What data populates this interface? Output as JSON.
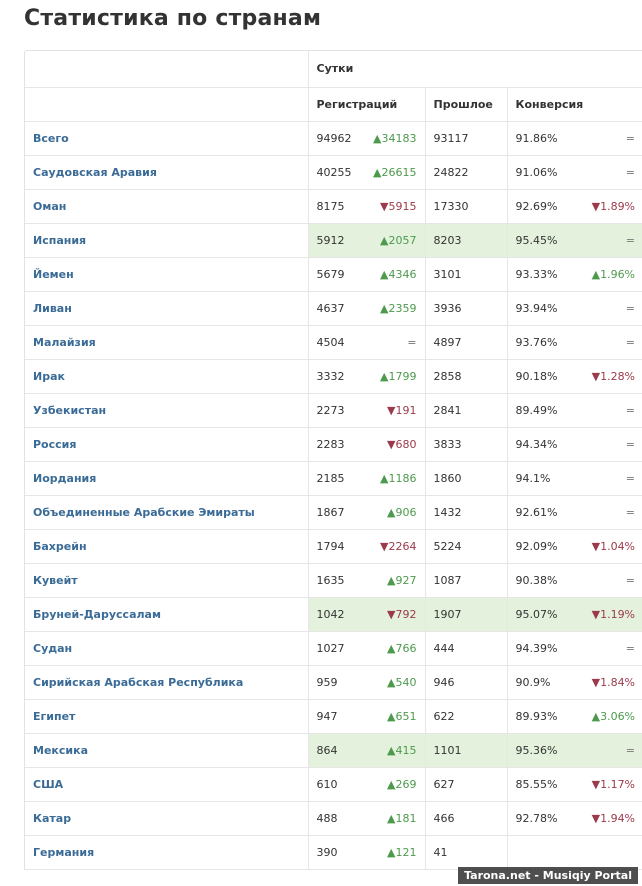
{
  "title": "Статистика по странам",
  "header": {
    "group": "Сутки",
    "col_reg": "Регистраций",
    "col_prev": "Прошлое",
    "col_conv": "Конверсия"
  },
  "rows": [
    {
      "country": "Всего",
      "reg": "94962",
      "reg_delta": "▲34183",
      "reg_dir": "up",
      "prev": "93117",
      "conv": "91.86%",
      "conv_delta": "=",
      "conv_dir": "eq",
      "hl": false
    },
    {
      "country": "Саудовская Аравия",
      "reg": "40255",
      "reg_delta": "▲26615",
      "reg_dir": "up",
      "prev": "24822",
      "conv": "91.06%",
      "conv_delta": "=",
      "conv_dir": "eq",
      "hl": false
    },
    {
      "country": "Оман",
      "reg": "8175",
      "reg_delta": "▼5915",
      "reg_dir": "down",
      "prev": "17330",
      "conv": "92.69%",
      "conv_delta": "▼1.89%",
      "conv_dir": "down",
      "hl": false
    },
    {
      "country": "Испания",
      "reg": "5912",
      "reg_delta": "▲2057",
      "reg_dir": "up",
      "prev": "8203",
      "conv": "95.45%",
      "conv_delta": "=",
      "conv_dir": "eq",
      "hl": true
    },
    {
      "country": "Йемен",
      "reg": "5679",
      "reg_delta": "▲4346",
      "reg_dir": "up",
      "prev": "3101",
      "conv": "93.33%",
      "conv_delta": "▲1.96%",
      "conv_dir": "up",
      "hl": false
    },
    {
      "country": "Ливан",
      "reg": "4637",
      "reg_delta": "▲2359",
      "reg_dir": "up",
      "prev": "3936",
      "conv": "93.94%",
      "conv_delta": "=",
      "conv_dir": "eq",
      "hl": false
    },
    {
      "country": "Малайзия",
      "reg": "4504",
      "reg_delta": "=",
      "reg_dir": "eq",
      "prev": "4897",
      "conv": "93.76%",
      "conv_delta": "=",
      "conv_dir": "eq",
      "hl": false
    },
    {
      "country": "Ирак",
      "reg": "3332",
      "reg_delta": "▲1799",
      "reg_dir": "up",
      "prev": "2858",
      "conv": "90.18%",
      "conv_delta": "▼1.28%",
      "conv_dir": "down",
      "hl": false
    },
    {
      "country": "Узбекистан",
      "reg": "2273",
      "reg_delta": "▼191",
      "reg_dir": "down",
      "prev": "2841",
      "conv": "89.49%",
      "conv_delta": "=",
      "conv_dir": "eq",
      "hl": false
    },
    {
      "country": "Россия",
      "reg": "2283",
      "reg_delta": "▼680",
      "reg_dir": "down",
      "prev": "3833",
      "conv": "94.34%",
      "conv_delta": "=",
      "conv_dir": "eq",
      "hl": false
    },
    {
      "country": "Иордания",
      "reg": "2185",
      "reg_delta": "▲1186",
      "reg_dir": "up",
      "prev": "1860",
      "conv": "94.1%",
      "conv_delta": "=",
      "conv_dir": "eq",
      "hl": false
    },
    {
      "country": "Объединенные Арабские Эмираты",
      "reg": "1867",
      "reg_delta": "▲906",
      "reg_dir": "up",
      "prev": "1432",
      "conv": "92.61%",
      "conv_delta": "=",
      "conv_dir": "eq",
      "hl": false
    },
    {
      "country": "Бахрейн",
      "reg": "1794",
      "reg_delta": "▼2264",
      "reg_dir": "down",
      "prev": "5224",
      "conv": "92.09%",
      "conv_delta": "▼1.04%",
      "conv_dir": "down",
      "hl": false
    },
    {
      "country": "Кувейт",
      "reg": "1635",
      "reg_delta": "▲927",
      "reg_dir": "up",
      "prev": "1087",
      "conv": "90.38%",
      "conv_delta": "=",
      "conv_dir": "eq",
      "hl": false
    },
    {
      "country": "Бруней-Даруссалам",
      "reg": "1042",
      "reg_delta": "▼792",
      "reg_dir": "down",
      "prev": "1907",
      "conv": "95.07%",
      "conv_delta": "▼1.19%",
      "conv_dir": "down",
      "hl": true
    },
    {
      "country": "Судан",
      "reg": "1027",
      "reg_delta": "▲766",
      "reg_dir": "up",
      "prev": "444",
      "conv": "94.39%",
      "conv_delta": "=",
      "conv_dir": "eq",
      "hl": false
    },
    {
      "country": "Сирийская Арабская Республика",
      "reg": "959",
      "reg_delta": "▲540",
      "reg_dir": "up",
      "prev": "946",
      "conv": "90.9%",
      "conv_delta": "▼1.84%",
      "conv_dir": "down",
      "hl": false
    },
    {
      "country": "Египет",
      "reg": "947",
      "reg_delta": "▲651",
      "reg_dir": "up",
      "prev": "622",
      "conv": "89.93%",
      "conv_delta": "▲3.06%",
      "conv_dir": "up",
      "hl": false
    },
    {
      "country": "Мексика",
      "reg": "864",
      "reg_delta": "▲415",
      "reg_dir": "up",
      "prev": "1101",
      "conv": "95.36%",
      "conv_delta": "=",
      "conv_dir": "eq",
      "hl": true
    },
    {
      "country": "США",
      "reg": "610",
      "reg_delta": "▲269",
      "reg_dir": "up",
      "prev": "627",
      "conv": "85.55%",
      "conv_delta": "▼1.17%",
      "conv_dir": "down",
      "hl": false
    },
    {
      "country": "Катар",
      "reg": "488",
      "reg_delta": "▲181",
      "reg_dir": "up",
      "prev": "466",
      "conv": "92.78%",
      "conv_delta": "▼1.94%",
      "conv_dir": "down",
      "hl": false
    },
    {
      "country": "Германия",
      "reg": "390",
      "reg_delta": "▲121",
      "reg_dir": "up",
      "prev": "41",
      "conv": "",
      "conv_delta": "",
      "conv_dir": "eq",
      "hl": false
    }
  ],
  "watermark": "Tarona.net - Musiqiy Portal"
}
